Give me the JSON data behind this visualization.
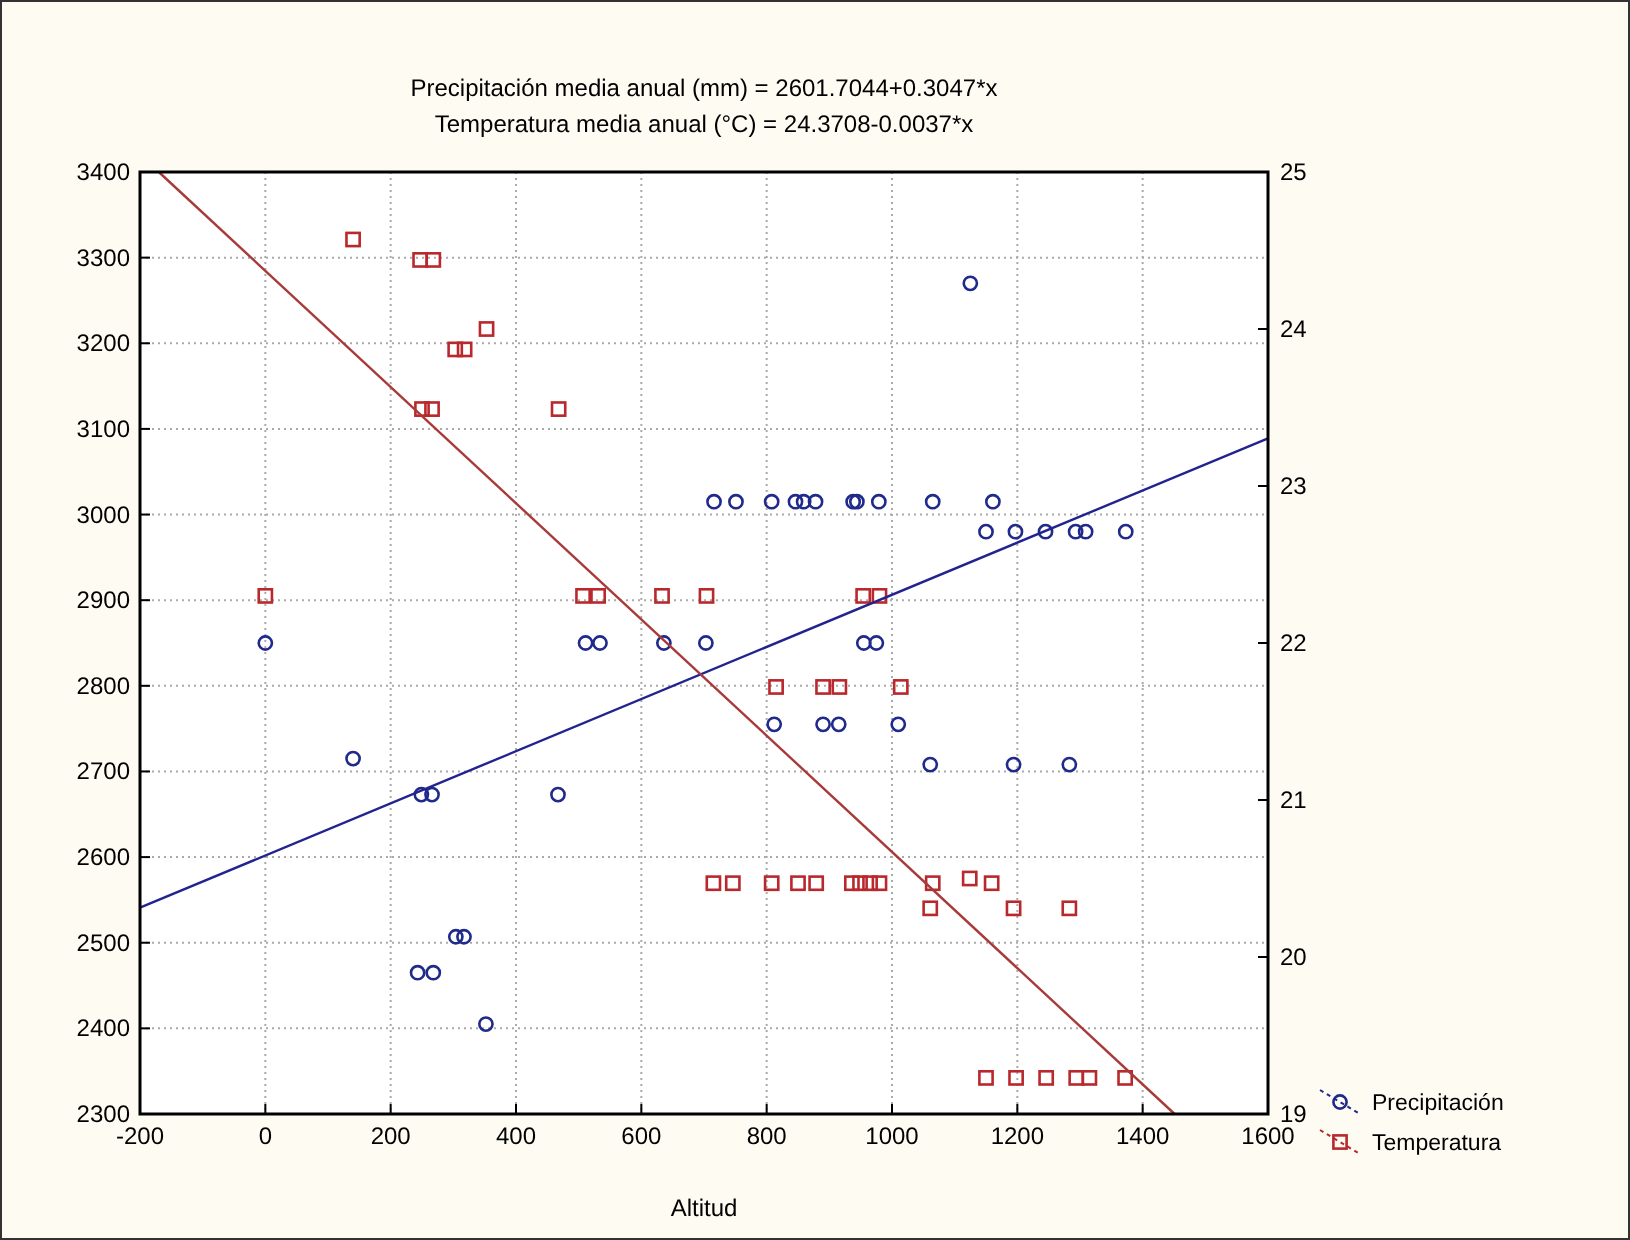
{
  "chart_data": {
    "type": "scatter",
    "title": "Precipitación media anual (mm) = 2601.7044+0.3047*x",
    "subtitle": "Temperatura media anual (°C) = 24.3708-0.0037*x",
    "xlabel": "Altitud",
    "xlim": [
      -200,
      1600
    ],
    "xticks": [
      -200,
      0,
      200,
      400,
      600,
      800,
      1000,
      1200,
      1400,
      1600
    ],
    "ylim": [
      2300,
      3400
    ],
    "yticks": [
      2300,
      2400,
      2500,
      2600,
      2700,
      2800,
      2900,
      3000,
      3100,
      3200,
      3300,
      3400
    ],
    "y2lim": [
      19,
      25
    ],
    "y2ticks": [
      19,
      20,
      21,
      22,
      23,
      24,
      25
    ],
    "grid": true,
    "legend": "bottom right",
    "series": [
      {
        "name": "Precipitación",
        "marker": "circle",
        "color": "#1f2a8a",
        "axis": "y",
        "x": [
          0,
          140,
          249,
          266,
          243,
          268,
          304,
          317,
          352,
          467,
          511,
          534,
          636,
          703,
          955,
          975,
          716,
          751,
          808,
          846,
          859,
          878,
          938,
          944,
          979,
          1065,
          1161,
          1150,
          1197,
          1245,
          1293,
          1309,
          1373,
          1125,
          812,
          890,
          915,
          1010,
          1061,
          1194,
          1283
        ],
        "values": [
          2850,
          2715,
          2673,
          2673,
          2465,
          2465,
          2507,
          2507,
          2405,
          2673,
          2850,
          2850,
          2850,
          2850,
          2850,
          2850,
          3015,
          3015,
          3015,
          3015,
          3015,
          3015,
          3015,
          3015,
          3015,
          3015,
          3015,
          2980,
          2980,
          2980,
          2980,
          2980,
          2980,
          3270,
          2755,
          2755,
          2755,
          2755,
          2708,
          2708,
          2708
        ]
      },
      {
        "name": "Temperatura",
        "marker": "square",
        "color": "#b8282c",
        "axis": "y2",
        "x": [
          0,
          140,
          247,
          268,
          303,
          318,
          353,
          250,
          266,
          468,
          507,
          531,
          633,
          704,
          954,
          980,
          815,
          890,
          916,
          1014,
          715,
          746,
          808,
          850,
          879,
          936,
          949,
          965,
          980,
          1065,
          1124,
          1159,
          1061,
          1194,
          1283,
          1150,
          1198,
          1246,
          1294,
          1315,
          1372
        ],
        "values": [
          22.3,
          24.57,
          24.44,
          24.44,
          23.87,
          23.87,
          24.0,
          23.49,
          23.49,
          23.49,
          22.3,
          22.3,
          22.3,
          22.3,
          22.3,
          22.3,
          21.72,
          21.72,
          21.72,
          21.72,
          20.47,
          20.47,
          20.47,
          20.47,
          20.47,
          20.47,
          20.47,
          20.47,
          20.47,
          20.47,
          20.5,
          20.47,
          20.31,
          20.31,
          20.31,
          19.23,
          19.23,
          19.23,
          19.23,
          19.23,
          19.23
        ]
      },
      {
        "type": "line",
        "color": "#23238f",
        "axis": "y",
        "x": [
          -200,
          1600
        ],
        "values": [
          2541,
          3089
        ]
      },
      {
        "type": "line",
        "color": "#a83a3a",
        "axis": "y2",
        "x": [
          -170,
          1451
        ],
        "values": [
          25.0,
          19.0
        ]
      }
    ]
  }
}
